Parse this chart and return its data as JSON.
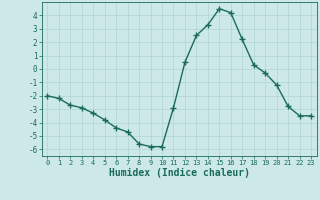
{
  "x": [
    0,
    1,
    2,
    3,
    4,
    5,
    6,
    7,
    8,
    9,
    10,
    11,
    12,
    13,
    14,
    15,
    16,
    17,
    18,
    19,
    20,
    21,
    22,
    23
  ],
  "y": [
    -2.0,
    -2.2,
    -2.7,
    -2.9,
    -3.3,
    -3.8,
    -4.4,
    -4.7,
    -5.6,
    -5.8,
    -5.8,
    -2.9,
    0.5,
    2.5,
    3.3,
    4.5,
    4.2,
    2.2,
    0.3,
    -0.3,
    -1.2,
    -2.8,
    -3.5,
    -3.5
  ],
  "line_color": "#1a6b5a",
  "marker": "+",
  "marker_size": 4,
  "line_width": 1.0,
  "bg_color": "#cce9e7",
  "grid_color": "#b0d5d2",
  "xlabel": "Humidex (Indice chaleur)",
  "xlabel_fontsize": 7,
  "tick_fontsize": 6,
  "xlim": [
    -0.5,
    23.5
  ],
  "ylim": [
    -6.5,
    5.0
  ],
  "yticks": [
    -6,
    -5,
    -4,
    -3,
    -2,
    -1,
    0,
    1,
    2,
    3,
    4
  ],
  "xticks": [
    0,
    1,
    2,
    3,
    4,
    5,
    6,
    7,
    8,
    9,
    10,
    11,
    12,
    13,
    14,
    15,
    16,
    17,
    18,
    19,
    20,
    21,
    22,
    23
  ]
}
